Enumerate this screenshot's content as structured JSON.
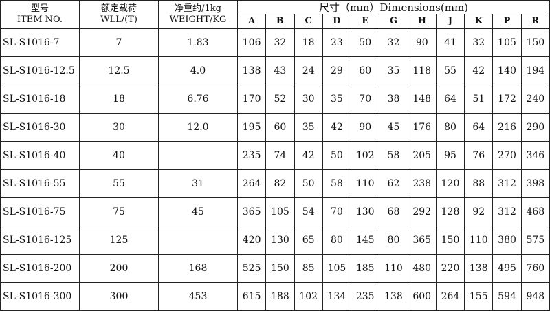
{
  "header": {
    "item_cn": "型号",
    "item_en": "ITEM NO.",
    "wll_cn": "额定载荷",
    "wll_en": "WLL/(T)",
    "weight_cn": "净重约/1kg",
    "weight_en": "WEIGHT/KG",
    "dimensions": "尺寸（mm）Dimensions(mm)",
    "dim_cols": [
      "A",
      "B",
      "C",
      "D",
      "E",
      "G",
      "H",
      "J",
      "K",
      "P",
      "R"
    ]
  },
  "rows": [
    {
      "item": "SL-S1016-7",
      "wll": "7",
      "weight": "1.83",
      "dims": [
        "106",
        "32",
        "18",
        "23",
        "50",
        "32",
        "90",
        "41",
        "32",
        "105",
        "150"
      ]
    },
    {
      "item": "SL-S1016-12.5",
      "wll": "12.5",
      "weight": "4.0",
      "dims": [
        "138",
        "43",
        "24",
        "29",
        "60",
        "35",
        "118",
        "55",
        "42",
        "140",
        "194"
      ]
    },
    {
      "item": "SL-S1016-18",
      "wll": "18",
      "weight": "6.76",
      "dims": [
        "170",
        "52",
        "30",
        "35",
        "70",
        "38",
        "148",
        "64",
        "51",
        "172",
        "240"
      ]
    },
    {
      "item": "SL-S1016-30",
      "wll": "30",
      "weight": "12.0",
      "dims": [
        "195",
        "60",
        "35",
        "42",
        "90",
        "45",
        "176",
        "80",
        "64",
        "216",
        "290"
      ]
    },
    {
      "item": "SL-S1016-40",
      "wll": "40",
      "weight": "",
      "dims": [
        "235",
        "74",
        "42",
        "50",
        "102",
        "58",
        "205",
        "95",
        "76",
        "270",
        "346"
      ]
    },
    {
      "item": "SL-S1016-55",
      "wll": "55",
      "weight": "31",
      "dims": [
        "264",
        "82",
        "50",
        "58",
        "110",
        "62",
        "238",
        "120",
        "88",
        "312",
        "398"
      ]
    },
    {
      "item": "SL-S1016-75",
      "wll": "75",
      "weight": "45",
      "dims": [
        "365",
        "105",
        "54",
        "70",
        "130",
        "68",
        "292",
        "128",
        "92",
        "312",
        "468"
      ]
    },
    {
      "item": "SL-S1016-125",
      "wll": "125",
      "weight": "",
      "dims": [
        "420",
        "130",
        "65",
        "80",
        "145",
        "80",
        "365",
        "150",
        "110",
        "380",
        "575"
      ]
    },
    {
      "item": "SL-S1016-200",
      "wll": "200",
      "weight": "168",
      "dims": [
        "525",
        "150",
        "85",
        "105",
        "185",
        "110",
        "480",
        "220",
        "138",
        "495",
        "760"
      ]
    },
    {
      "item": "SL-S1016-300",
      "wll": "300",
      "weight": "453",
      "dims": [
        "615",
        "188",
        "102",
        "134",
        "235",
        "138",
        "600",
        "264",
        "155",
        "594",
        "948"
      ]
    }
  ]
}
